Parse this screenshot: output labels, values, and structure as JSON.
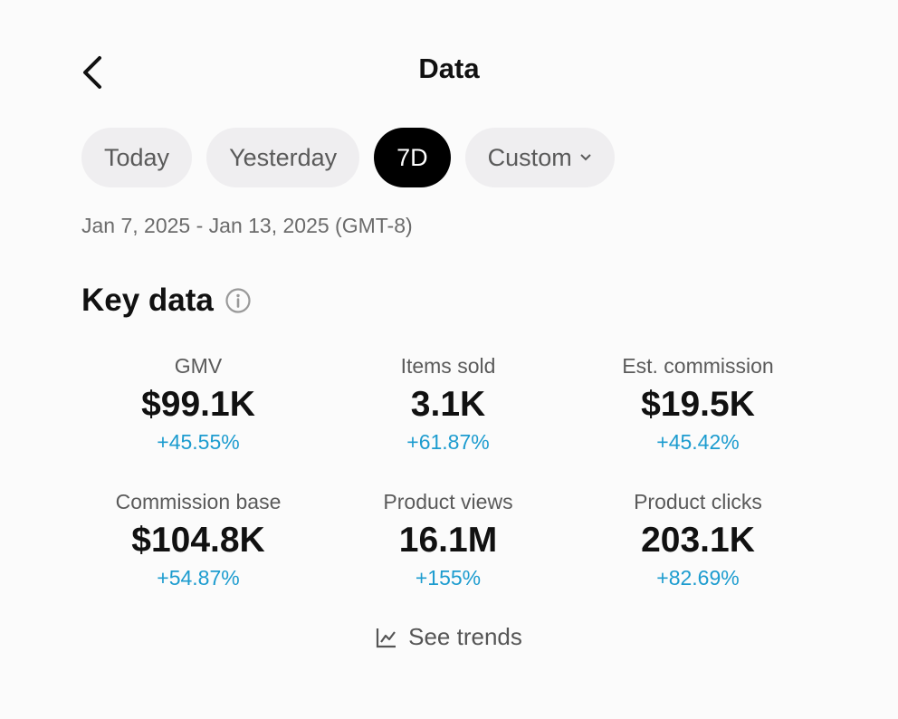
{
  "header": {
    "title": "Data"
  },
  "tabs": [
    "Today",
    "Yesterday",
    "7D",
    "Custom"
  ],
  "selected_tab": 2,
  "date_range": "Jan 7, 2025 - Jan 13, 2025 (GMT-8)",
  "section": {
    "title": "Key data"
  },
  "metrics": [
    {
      "label": "GMV",
      "value": "$99.1K",
      "change": "+45.55%"
    },
    {
      "label": "Items sold",
      "value": "3.1K",
      "change": "+61.87%"
    },
    {
      "label": "Est. commission",
      "value": "$19.5K",
      "change": "+45.42%"
    },
    {
      "label": "Commission base",
      "value": "$104.8K",
      "change": "+54.87%"
    },
    {
      "label": "Product views",
      "value": "16.1M",
      "change": "+155%"
    },
    {
      "label": "Product clicks",
      "value": "203.1K",
      "change": "+82.69%"
    }
  ],
  "link": "See trends"
}
